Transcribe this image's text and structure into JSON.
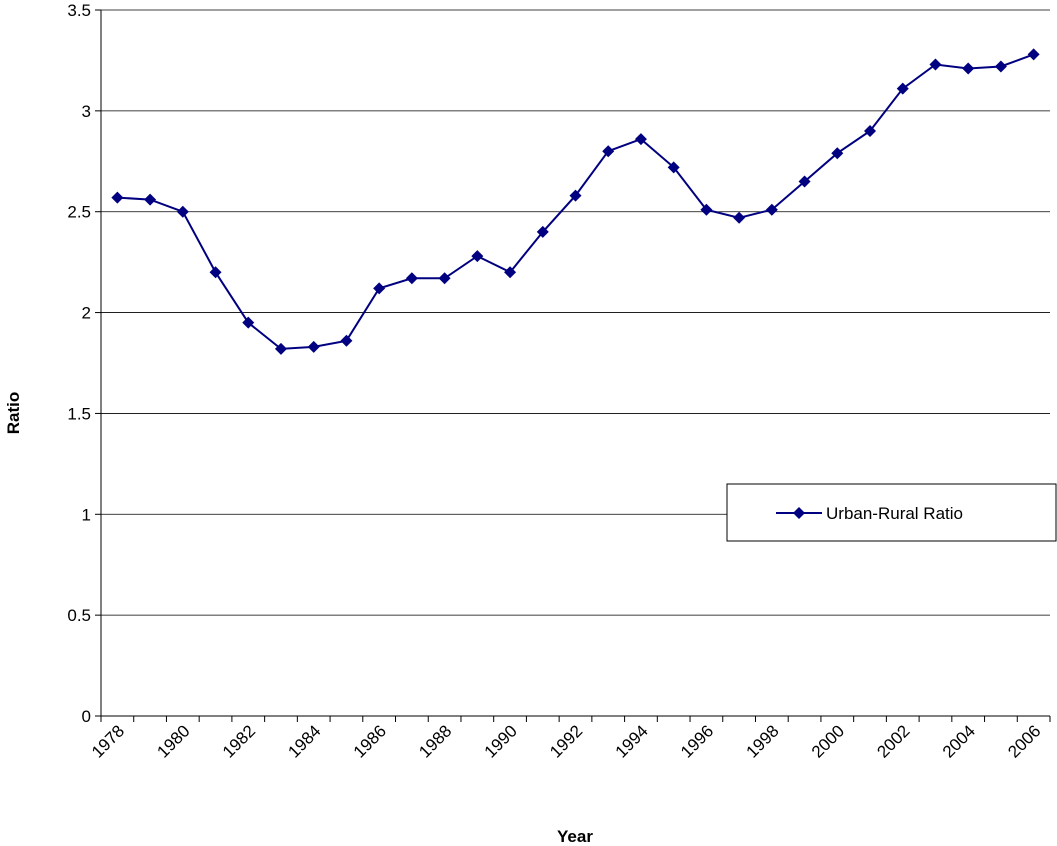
{
  "chart_data": {
    "type": "line",
    "title": "",
    "xlabel": "Year",
    "ylabel": "Ratio",
    "ylim": [
      0,
      3.5
    ],
    "y_ticks": [
      "0",
      "0.5",
      "1",
      "1.5",
      "2",
      "2.5",
      "3",
      "3.5"
    ],
    "x_tick_labels": [
      "1978",
      "1980",
      "1982",
      "1984",
      "1986",
      "1988",
      "1990",
      "1992",
      "1994",
      "1996",
      "1998",
      "2000",
      "2002",
      "2004",
      "2006"
    ],
    "grid": "horizontal",
    "legend_position": "right",
    "series": [
      {
        "name": "Urban-Rural Ratio",
        "color": "#000080",
        "marker": "diamond",
        "x": [
          1978,
          1979,
          1980,
          1981,
          1982,
          1983,
          1984,
          1985,
          1986,
          1987,
          1988,
          1989,
          1990,
          1991,
          1992,
          1993,
          1994,
          1995,
          1996,
          1997,
          1998,
          1999,
          2000,
          2001,
          2002,
          2003,
          2004,
          2005,
          2006
        ],
        "values": [
          2.57,
          2.56,
          2.5,
          2.2,
          1.95,
          1.82,
          1.83,
          1.86,
          2.12,
          2.17,
          2.17,
          2.28,
          2.2,
          2.4,
          2.58,
          2.8,
          2.86,
          2.72,
          2.51,
          2.47,
          2.51,
          2.65,
          2.79,
          2.9,
          3.11,
          3.23,
          3.21,
          3.22,
          3.28
        ]
      }
    ]
  }
}
